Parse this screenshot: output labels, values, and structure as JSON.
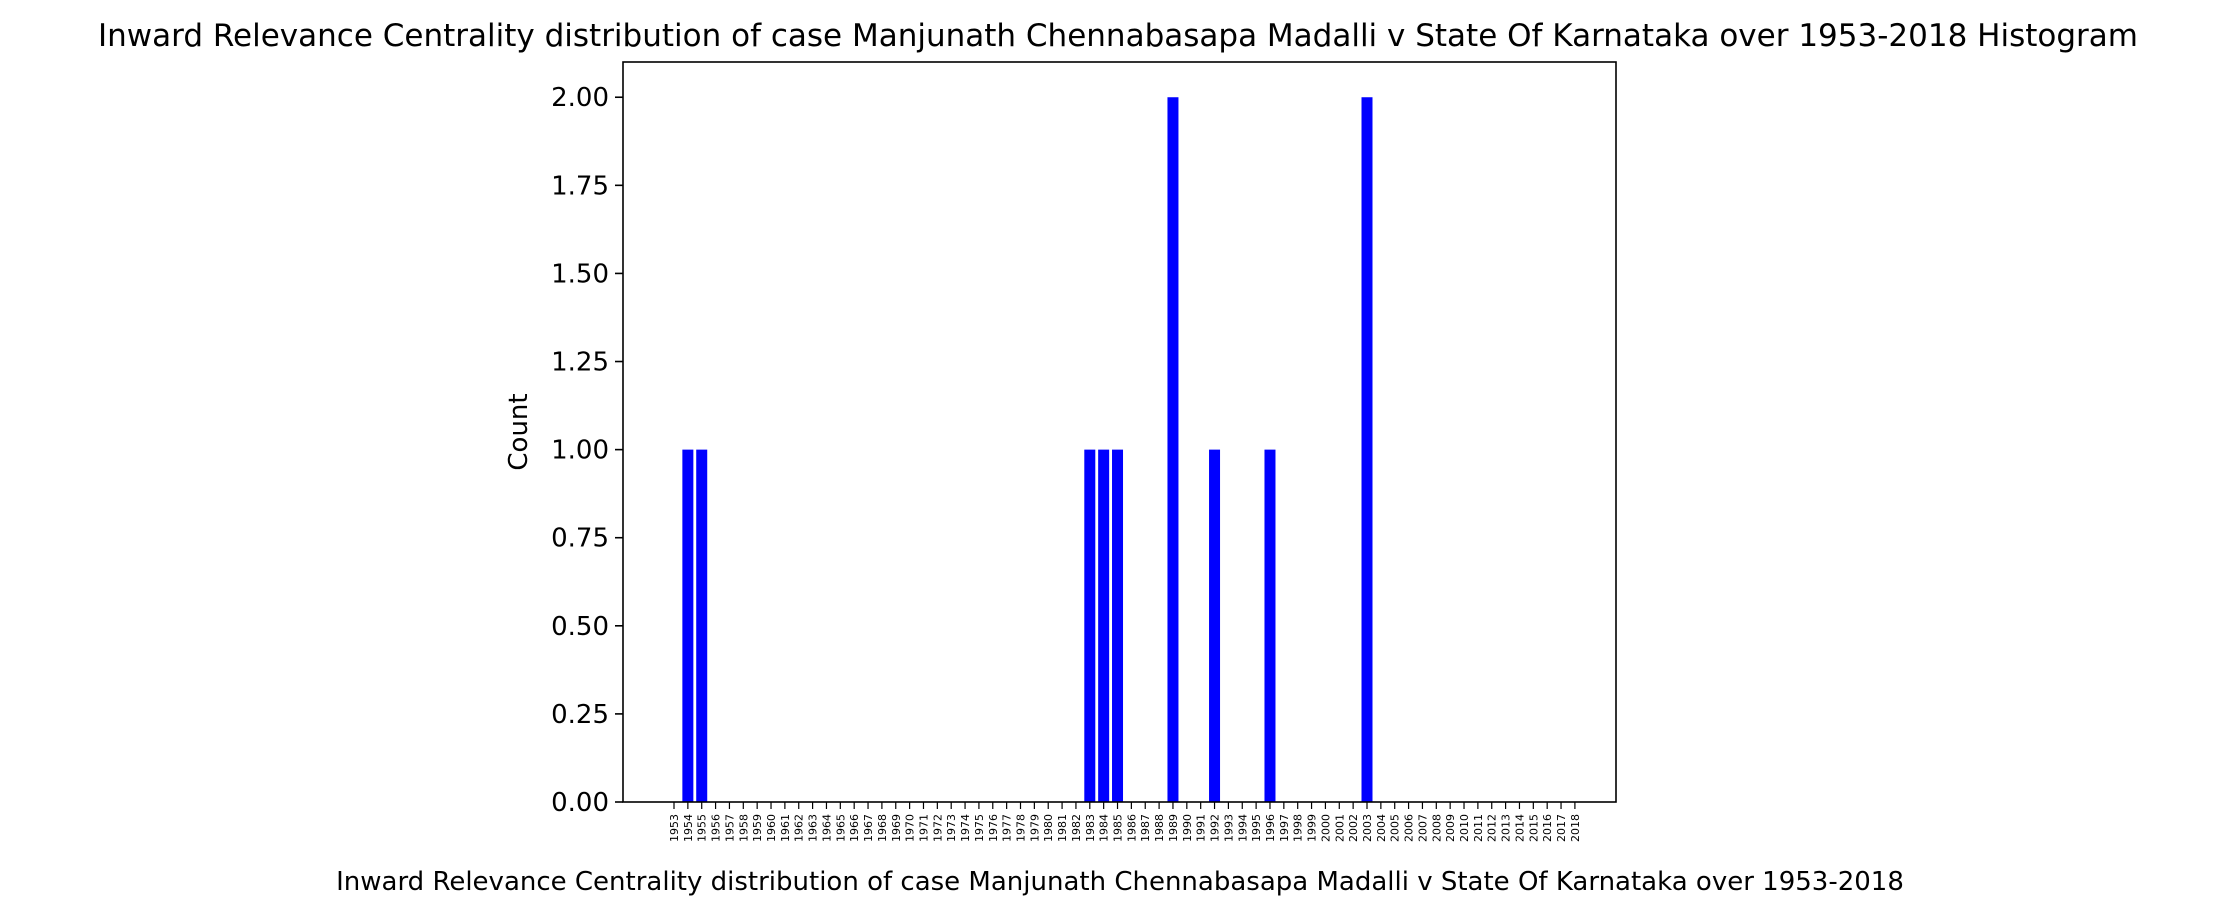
{
  "chart_data": {
    "type": "bar",
    "title": "Inward Relevance Centrality distribution of case Manjunath Chennabasapa Madalli v State Of Karnataka over 1953-2018 Histogram",
    "xlabel": "Inward Relevance Centrality distribution of case Manjunath Chennabasapa Madalli v State Of Karnataka over 1953-2018",
    "ylabel": "Count",
    "ylim": [
      0,
      2.1
    ],
    "yticks": [
      "0.00",
      "0.25",
      "0.50",
      "0.75",
      "1.00",
      "1.25",
      "1.50",
      "1.75",
      "2.00"
    ],
    "categories": [
      "1953",
      "1954",
      "1955",
      "1956",
      "1957",
      "1958",
      "1959",
      "1960",
      "1961",
      "1962",
      "1963",
      "1964",
      "1965",
      "1966",
      "1967",
      "1968",
      "1969",
      "1970",
      "1971",
      "1972",
      "1973",
      "1974",
      "1975",
      "1976",
      "1977",
      "1978",
      "1979",
      "1980",
      "1981",
      "1982",
      "1983",
      "1984",
      "1985",
      "1986",
      "1987",
      "1988",
      "1989",
      "1990",
      "1991",
      "1992",
      "1993",
      "1994",
      "1995",
      "1996",
      "1997",
      "1998",
      "1999",
      "2000",
      "2001",
      "2002",
      "2003",
      "2004",
      "2005",
      "2006",
      "2007",
      "2008",
      "2009",
      "2010",
      "2011",
      "2012",
      "2013",
      "2014",
      "2015",
      "2016",
      "2017",
      "2018"
    ],
    "values": [
      0,
      1,
      1,
      0,
      0,
      0,
      0,
      0,
      0,
      0,
      0,
      0,
      0,
      0,
      0,
      0,
      0,
      0,
      0,
      0,
      0,
      0,
      0,
      0,
      0,
      0,
      0,
      0,
      0,
      0,
      1,
      1,
      1,
      0,
      0,
      0,
      2,
      0,
      0,
      1,
      0,
      0,
      0,
      1,
      0,
      0,
      0,
      0,
      0,
      0,
      2,
      0,
      0,
      0,
      0,
      0,
      0,
      0,
      0,
      0,
      0,
      0,
      0,
      0,
      0,
      0
    ],
    "bar_color": "#0000ff",
    "grid": false,
    "legend": "none"
  }
}
